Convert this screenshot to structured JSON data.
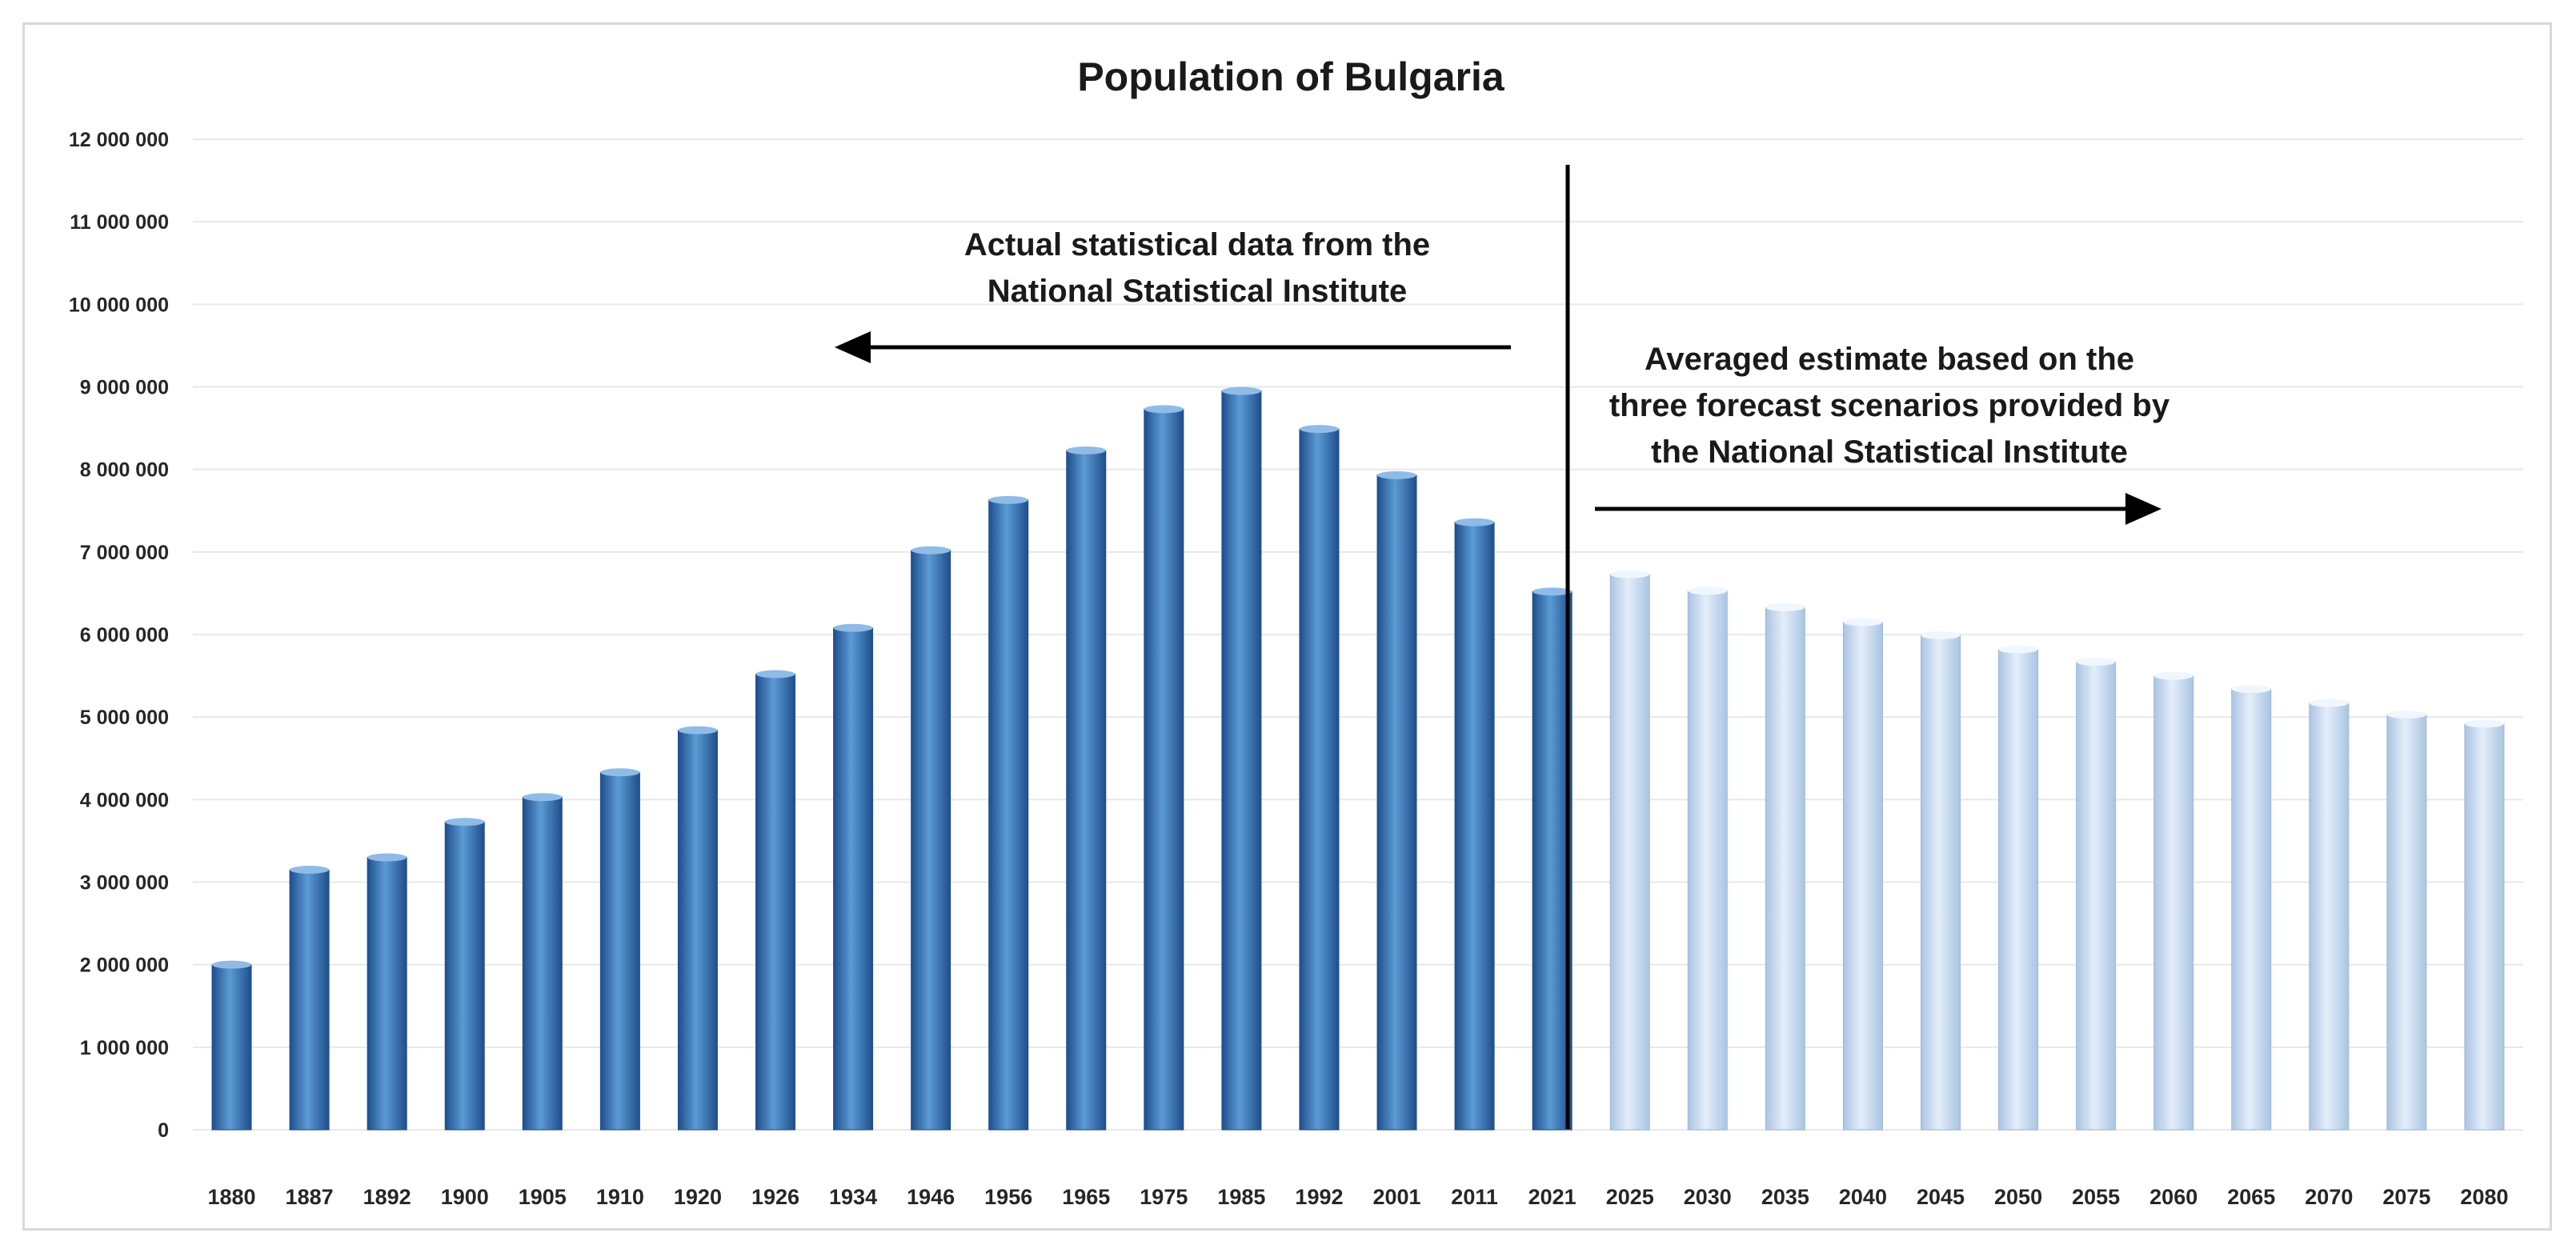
{
  "chart_data": {
    "type": "bar",
    "title": "Population of Bulgaria",
    "xlabel": "",
    "ylabel": "",
    "ylim": [
      0,
      12000000
    ],
    "y_ticks": [
      0,
      1000000,
      2000000,
      3000000,
      4000000,
      5000000,
      6000000,
      7000000,
      8000000,
      9000000,
      10000000,
      11000000,
      12000000
    ],
    "y_tick_labels": [
      "0",
      "1 000 000",
      "2 000 000",
      "3 000 000",
      "4 000 000",
      "5 000 000",
      "6 000 000",
      "7 000 000",
      "8 000 000",
      "9 000 000",
      "10 000 000",
      "11 000 000",
      "12 000 000"
    ],
    "grid": true,
    "legend": "none",
    "categories": [
      "1880",
      "1887",
      "1892",
      "1900",
      "1905",
      "1910",
      "1920",
      "1926",
      "1934",
      "1946",
      "1956",
      "1965",
      "1975",
      "1985",
      "1992",
      "2001",
      "2011",
      "2021",
      "2025",
      "2030",
      "2035",
      "2040",
      "2045",
      "2050",
      "2055",
      "2060",
      "2065",
      "2070",
      "2075",
      "2080"
    ],
    "series": [
      {
        "name": "Actual statistical data",
        "color": "#2e75b6",
        "values": [
          2000000,
          3150000,
          3300000,
          3730000,
          4030000,
          4330000,
          4840000,
          5520000,
          6080000,
          7020000,
          7630000,
          8230000,
          8730000,
          8950000,
          8490000,
          7930000,
          7360000,
          6520000,
          null,
          null,
          null,
          null,
          null,
          null,
          null,
          null,
          null,
          null,
          null,
          null
        ]
      },
      {
        "name": "Averaged forecast estimate",
        "color": "#c5d9f1",
        "values": [
          null,
          null,
          null,
          null,
          null,
          null,
          null,
          null,
          null,
          null,
          null,
          null,
          null,
          null,
          null,
          null,
          null,
          null,
          6730000,
          6530000,
          6330000,
          6150000,
          5990000,
          5820000,
          5670000,
          5500000,
          5340000,
          5170000,
          5030000,
          4920000
        ]
      }
    ],
    "annotations": {
      "actual": [
        "Actual statistical data from the",
        "National Statistical Institute"
      ],
      "forecast": [
        "Averaged estimate based on the",
        "three forecast scenarios provided by",
        "the National Statistical Institute"
      ]
    }
  }
}
